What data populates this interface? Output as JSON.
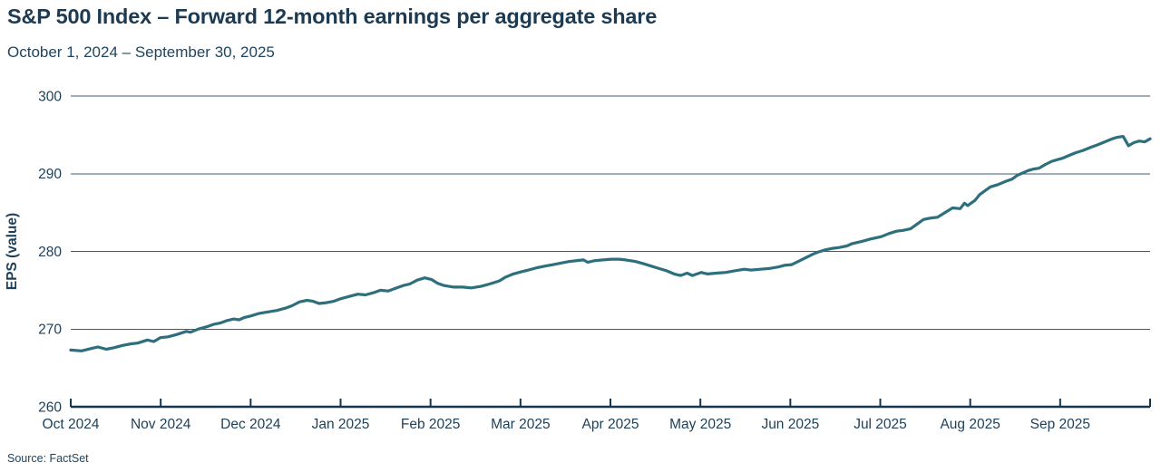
{
  "header": {
    "title": "S&P 500 Index – Forward 12-month earnings per aggregate share",
    "subtitle": "October 1, 2024 – September 30, 2025"
  },
  "footer": {
    "source": "Source: FactSet"
  },
  "colors": {
    "text": "#1c3a52",
    "grid": "#3e5c74",
    "axis": "#16364f",
    "line": "#2e6f7e",
    "background": "#ffffff"
  },
  "chart_data": {
    "type": "line",
    "title": "S&P 500 Index – Forward 12-month earnings per aggregate share",
    "subtitle": "October 1, 2024 – September 30, 2025",
    "xlabel": "",
    "ylabel": "EPS (value)",
    "ylim": [
      260,
      300
    ],
    "yticks": [
      260,
      270,
      280,
      290,
      300
    ],
    "x_tick_labels": [
      "Oct 2024",
      "Nov 2024",
      "Dec 2024",
      "Jan 2025",
      "Feb 2025",
      "Mar 2025",
      "Apr 2025",
      "May 2025",
      "Jun 2025",
      "Jul 2025",
      "Aug 2025",
      "Sep 2025"
    ],
    "grid": "horizontal",
    "legend": "none",
    "source": "FactSet",
    "series": [
      {
        "name": "Forward 12-month EPS per aggregate share",
        "x_unit": "percent-of-date-axis (0 = Oct 1 2024, 100 = Sep 30 2025)",
        "points": [
          [
            0,
            267.3
          ],
          [
            1.0,
            267.2
          ],
          [
            1.9,
            267.5
          ],
          [
            2.5,
            267.7
          ],
          [
            3.3,
            267.4
          ],
          [
            4.0,
            267.6
          ],
          [
            4.8,
            267.9
          ],
          [
            5.6,
            268.1
          ],
          [
            6.2,
            268.2
          ],
          [
            7.1,
            268.6
          ],
          [
            7.7,
            268.4
          ],
          [
            8.3,
            268.9
          ],
          [
            9.0,
            269.0
          ],
          [
            9.8,
            269.3
          ],
          [
            10.7,
            269.7
          ],
          [
            11.1,
            269.6
          ],
          [
            11.8,
            270.0
          ],
          [
            12.6,
            270.3
          ],
          [
            13.2,
            270.6
          ],
          [
            13.9,
            270.8
          ],
          [
            14.5,
            271.1
          ],
          [
            15.1,
            271.3
          ],
          [
            15.6,
            271.2
          ],
          [
            16.1,
            271.5
          ],
          [
            16.7,
            271.7
          ],
          [
            17.4,
            272.0
          ],
          [
            18.2,
            272.2
          ],
          [
            19.1,
            272.4
          ],
          [
            19.9,
            272.7
          ],
          [
            20.5,
            273.0
          ],
          [
            21.2,
            273.5
          ],
          [
            21.9,
            273.7
          ],
          [
            22.4,
            273.6
          ],
          [
            23.0,
            273.3
          ],
          [
            23.7,
            273.4
          ],
          [
            24.4,
            273.6
          ],
          [
            25.0,
            273.9
          ],
          [
            25.8,
            274.2
          ],
          [
            26.6,
            274.5
          ],
          [
            27.3,
            274.4
          ],
          [
            28.1,
            274.7
          ],
          [
            28.7,
            275.0
          ],
          [
            29.4,
            274.9
          ],
          [
            30.2,
            275.3
          ],
          [
            30.8,
            275.6
          ],
          [
            31.4,
            275.8
          ],
          [
            32.1,
            276.3
          ],
          [
            32.8,
            276.6
          ],
          [
            33.4,
            276.4
          ],
          [
            34.0,
            275.9
          ],
          [
            34.6,
            275.6
          ],
          [
            35.5,
            275.4
          ],
          [
            36.3,
            275.4
          ],
          [
            37.1,
            275.3
          ],
          [
            38.0,
            275.5
          ],
          [
            38.8,
            275.8
          ],
          [
            39.7,
            276.2
          ],
          [
            40.3,
            276.7
          ],
          [
            41.0,
            277.1
          ],
          [
            41.8,
            277.4
          ],
          [
            42.4,
            277.6
          ],
          [
            43.2,
            277.9
          ],
          [
            43.9,
            278.1
          ],
          [
            44.7,
            278.3
          ],
          [
            45.4,
            278.5
          ],
          [
            46.2,
            278.7
          ],
          [
            46.8,
            278.8
          ],
          [
            47.5,
            278.9
          ],
          [
            47.9,
            278.6
          ],
          [
            48.5,
            278.8
          ],
          [
            49.3,
            278.9
          ],
          [
            50.1,
            279.0
          ],
          [
            50.8,
            279.0
          ],
          [
            51.4,
            278.9
          ],
          [
            52.3,
            278.7
          ],
          [
            53.1,
            278.4
          ],
          [
            53.8,
            278.1
          ],
          [
            54.5,
            277.8
          ],
          [
            55.2,
            277.5
          ],
          [
            55.9,
            277.1
          ],
          [
            56.5,
            276.9
          ],
          [
            57.1,
            277.2
          ],
          [
            57.6,
            276.9
          ],
          [
            58.4,
            277.3
          ],
          [
            59.0,
            277.1
          ],
          [
            59.8,
            277.2
          ],
          [
            60.7,
            277.3
          ],
          [
            61.5,
            277.5
          ],
          [
            62.4,
            277.7
          ],
          [
            63.0,
            277.6
          ],
          [
            63.9,
            277.7
          ],
          [
            64.7,
            277.8
          ],
          [
            65.6,
            278.0
          ],
          [
            66.1,
            278.2
          ],
          [
            66.8,
            278.3
          ],
          [
            67.4,
            278.7
          ],
          [
            68.1,
            279.2
          ],
          [
            68.7,
            279.6
          ],
          [
            69.2,
            279.9
          ],
          [
            69.9,
            280.2
          ],
          [
            70.6,
            280.4
          ],
          [
            71.2,
            280.5
          ],
          [
            71.9,
            280.7
          ],
          [
            72.4,
            281.0
          ],
          [
            73.3,
            281.3
          ],
          [
            74.1,
            281.6
          ],
          [
            75.1,
            281.9
          ],
          [
            75.8,
            282.3
          ],
          [
            76.5,
            282.6
          ],
          [
            77.1,
            282.7
          ],
          [
            77.8,
            282.9
          ],
          [
            78.5,
            283.6
          ],
          [
            79.0,
            284.1
          ],
          [
            79.7,
            284.3
          ],
          [
            80.3,
            284.4
          ],
          [
            81.0,
            285.0
          ],
          [
            81.7,
            285.6
          ],
          [
            82.4,
            285.5
          ],
          [
            82.8,
            286.2
          ],
          [
            83.1,
            285.9
          ],
          [
            83.8,
            286.6
          ],
          [
            84.2,
            287.3
          ],
          [
            84.7,
            287.8
          ],
          [
            85.2,
            288.3
          ],
          [
            85.9,
            288.6
          ],
          [
            86.6,
            289.0
          ],
          [
            87.2,
            289.3
          ],
          [
            87.7,
            289.8
          ],
          [
            88.2,
            290.1
          ],
          [
            88.7,
            290.4
          ],
          [
            89.2,
            290.6
          ],
          [
            89.7,
            290.7
          ],
          [
            90.3,
            291.2
          ],
          [
            90.9,
            291.6
          ],
          [
            91.9,
            292.0
          ],
          [
            92.4,
            292.3
          ],
          [
            93.1,
            292.7
          ],
          [
            93.8,
            293.0
          ],
          [
            94.5,
            293.4
          ],
          [
            95.1,
            293.7
          ],
          [
            95.8,
            294.1
          ],
          [
            96.5,
            294.5
          ],
          [
            97.0,
            294.7
          ],
          [
            97.5,
            294.8
          ],
          [
            98.0,
            293.6
          ],
          [
            98.5,
            294.0
          ],
          [
            99.0,
            294.2
          ],
          [
            99.5,
            294.1
          ],
          [
            100,
            294.5
          ]
        ]
      }
    ]
  }
}
